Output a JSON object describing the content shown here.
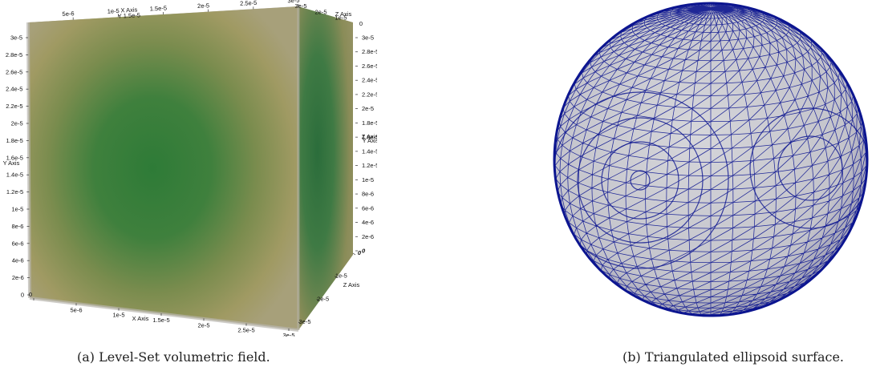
{
  "figure_a": {
    "top_x_ticks": [
      "5e-6",
      "1e-5",
      "1.5e-5",
      "2e-5",
      "2.5e-5",
      "3e-5"
    ],
    "top_x_label": "X Axis",
    "top_y_overlay": "Y 1.5e-5",
    "top_z_ticks": [
      "3e-5",
      "2e-5",
      "1e-5",
      "0"
    ],
    "top_z_label": "Z Axis",
    "left_y_ticks": [
      "3e-5",
      "2.8e-5",
      "2.6e-5",
      "2.4e-5",
      "2.2e-5",
      "2e-5",
      "1.8e-5",
      "1.6e-5",
      "1.4e-5",
      "1.2e-5",
      "1e-5",
      "8e-6",
      "6e-6",
      "4e-6",
      "2e-6",
      "0"
    ],
    "left_y_label": "Y Axis",
    "right_y_ticks": [
      "3e-5",
      "2.8e-5",
      "2.6e-5",
      "2.4e-5",
      "2.2e-5",
      "2e-5",
      "1.8e-5",
      "1.6e-5",
      "1.4e-5",
      "1.2e-5",
      "1e-5",
      "8e-6",
      "6e-6",
      "4e-6",
      "2e-6",
      "0"
    ],
    "right_y_label": "Y Axis",
    "right_z_label_top": "Z Axis",
    "bottom_x_ticks": [
      "0",
      "5e-6",
      "1e-5",
      "1.5e-5",
      "2e-5",
      "2.5e-5",
      "3e-5"
    ],
    "bottom_x_label": "X Axis",
    "bottom_z_ticks": [
      "0",
      "1e-5",
      "2e-5",
      "3e-5"
    ],
    "bottom_z_label": "Z Axis",
    "colors": {
      "face_outer": "#a39a68",
      "face_inner": "#2d7a36",
      "edge": "#b3b0a8"
    }
  },
  "figure_b": {
    "colors": {
      "sphere_fill": "#c9c9cf",
      "mesh": "#0c1590"
    }
  },
  "captions": {
    "a": "(a) Level-Set volumetric field.",
    "b": "(b) Triangulated ellipsoid surface."
  }
}
